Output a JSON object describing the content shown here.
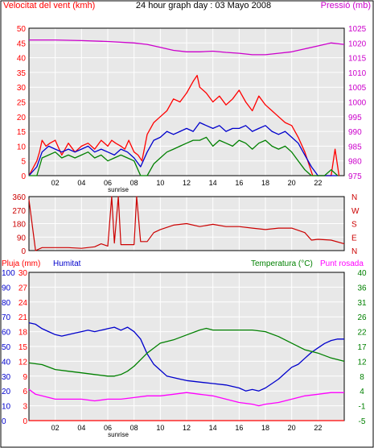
{
  "header": {
    "left": "Velocitat del vent (kmh)",
    "center": "24 hour graph day : 03 Mayo 2008",
    "right": "Pressió (mb)"
  },
  "x_ticks": [
    "02",
    "04",
    "06",
    "08",
    "10",
    "12",
    "14",
    "16",
    "18",
    "20",
    "22"
  ],
  "sunrise_label": "sunrise",
  "colors": {
    "background": "#ffffff",
    "plot_bg": "#e8e8e8",
    "grid": "#ffffff",
    "axis": "#000000",
    "wind": "#ff0000",
    "wind_avg": "#0000cc",
    "wind_min": "#008000",
    "pressure": "#cc00cc",
    "direction": "#cc0000",
    "humidity": "#0000cc",
    "temperature": "#008000",
    "dewpoint": "#ff00ff",
    "rain": "#ff0000"
  },
  "chart_data": [
    {
      "type": "line",
      "title": "24 hour graph day : 03 Mayo 2008",
      "ylabel_left": "Velocitat del vent (kmh)",
      "ylabel_right": "Pressió (mb)",
      "x_ticks": [
        "02",
        "04",
        "06",
        "08",
        "10",
        "12",
        "14",
        "16",
        "18",
        "20",
        "22"
      ],
      "yticks_left": [
        0,
        5,
        10,
        15,
        20,
        25,
        30,
        35,
        40,
        45,
        50
      ],
      "yticks_right": [
        975,
        980,
        985,
        990,
        995,
        1000,
        1005,
        1010,
        1015,
        1020,
        1025
      ],
      "ylim_left": [
        0,
        50
      ],
      "ylim_right": [
        975,
        1025
      ],
      "xlim": [
        0,
        24
      ],
      "grid": true,
      "series": [
        {
          "name": "Velocitat del vent (kmh)",
          "axis": "left",
          "color": "#ff0000",
          "x": [
            0,
            0.6,
            0.8,
            1,
            1.3,
            1.6,
            2,
            2.5,
            3,
            3.5,
            4,
            4.5,
            5,
            5.5,
            6,
            6.3,
            6.6,
            7,
            7.3,
            7.6,
            8,
            8.3,
            8.6,
            9,
            9.5,
            10,
            10.5,
            11,
            11.5,
            12,
            12.5,
            12.8,
            13,
            13.5,
            14,
            14.5,
            15,
            15.5,
            16,
            16.5,
            17,
            17.5,
            18,
            18.5,
            19,
            19.5,
            20,
            20.5,
            21,
            21.3,
            21.6,
            22,
            22.5,
            23,
            23.3,
            23.6
          ],
          "y": [
            0,
            5,
            8,
            12,
            10,
            11,
            12,
            7,
            11,
            8,
            10,
            11,
            9,
            12,
            10,
            12,
            11,
            10,
            9,
            12,
            8,
            7,
            5,
            14,
            18,
            20,
            22,
            26,
            25,
            28,
            32,
            34,
            30,
            28,
            25,
            27,
            24,
            26,
            29,
            25,
            22,
            27,
            24,
            22,
            20,
            18,
            17,
            13,
            8,
            4,
            0,
            0,
            0,
            0,
            9,
            0
          ]
        },
        {
          "name": "",
          "axis": "left",
          "color": "#0000cc",
          "x": [
            0,
            0.6,
            1,
            1.5,
            2,
            2.5,
            3,
            3.5,
            4,
            4.5,
            5,
            5.5,
            6,
            6.5,
            7,
            7.5,
            8,
            8.5,
            9,
            9.5,
            10,
            10.5,
            11,
            11.5,
            12,
            12.5,
            13,
            13.5,
            14,
            14.5,
            15,
            15.5,
            16,
            16.5,
            17,
            17.5,
            18,
            18.5,
            19,
            19.5,
            20,
            20.5,
            21,
            21.5,
            22,
            22.5,
            23,
            23.5
          ],
          "y": [
            0,
            3,
            8,
            10,
            9,
            8,
            9,
            8,
            9,
            10,
            8,
            9,
            8,
            7,
            9,
            8,
            6,
            3,
            8,
            12,
            13,
            15,
            14,
            15,
            16,
            15,
            18,
            17,
            16,
            17,
            15,
            16,
            16,
            17,
            15,
            16,
            17,
            15,
            14,
            15,
            13,
            11,
            7,
            3,
            0,
            0,
            0,
            0
          ]
        },
        {
          "name": "",
          "axis": "left",
          "color": "#008000",
          "x": [
            0,
            0.6,
            1,
            1.5,
            2,
            2.5,
            3,
            3.5,
            4,
            4.5,
            5,
            5.5,
            6,
            6.5,
            7,
            7.5,
            8,
            8.5,
            9,
            9.5,
            10,
            10.5,
            11,
            11.5,
            12,
            12.5,
            13,
            13.5,
            14,
            14.5,
            15,
            15.5,
            16,
            16.5,
            17,
            17.5,
            18,
            18.5,
            19,
            19.5,
            20,
            20.5,
            21,
            21.5,
            22,
            22.5,
            23,
            23.5
          ],
          "y": [
            0,
            0,
            6,
            7,
            8,
            6,
            7,
            6,
            7,
            8,
            6,
            7,
            5,
            6,
            7,
            6,
            5,
            0,
            0,
            4,
            6,
            8,
            9,
            10,
            11,
            12,
            12,
            13,
            10,
            12,
            11,
            10,
            12,
            11,
            9,
            11,
            12,
            10,
            9,
            10,
            8,
            5,
            2,
            0,
            0,
            0,
            2,
            0
          ]
        },
        {
          "name": "Pressió (mb)",
          "axis": "right",
          "color": "#cc00cc",
          "x": [
            0,
            2,
            4,
            6,
            8,
            9,
            10,
            11,
            12,
            13,
            14,
            15,
            16,
            17,
            18,
            19,
            20,
            21,
            22,
            23,
            24
          ],
          "y": [
            1021,
            1021,
            1020.8,
            1020.5,
            1020,
            1019.5,
            1018.5,
            1017.5,
            1017,
            1017,
            1017.2,
            1016.8,
            1016.5,
            1016,
            1016,
            1016.5,
            1017,
            1018,
            1019,
            1020,
            1019.5
          ]
        }
      ]
    },
    {
      "type": "line",
      "ylabel_right": "N W S E N",
      "right_ticks": [
        "N",
        "W",
        "S",
        "E",
        "N"
      ],
      "yticks": [
        0,
        90,
        180,
        270,
        360
      ],
      "ylim": [
        0,
        360
      ],
      "xlim": [
        0,
        24
      ],
      "grid": true,
      "series": [
        {
          "name": "",
          "color": "#cc0000",
          "x": [
            0,
            0.5,
            1,
            2,
            3,
            4,
            5,
            5.5,
            6,
            6.3,
            6.5,
            6.8,
            7,
            7.3,
            7.5,
            8,
            8.2,
            8.5,
            9,
            9.5,
            10,
            11,
            12,
            13,
            14,
            15,
            16,
            17,
            18,
            19,
            20,
            21,
            21.5,
            22,
            23,
            24
          ],
          "y": [
            340,
            0,
            20,
            20,
            20,
            15,
            25,
            45,
            30,
            360,
            50,
            360,
            40,
            40,
            40,
            40,
            360,
            60,
            60,
            120,
            140,
            170,
            180,
            160,
            175,
            160,
            160,
            150,
            140,
            150,
            150,
            120,
            70,
            75,
            70,
            45
          ]
        }
      ]
    },
    {
      "type": "line",
      "yaxis_titles": {
        "pluja": "Pluja (mm)",
        "humitat": "Humitat",
        "temperatura": "Temperatura (°C)",
        "punt_rosada": "Punt rosada"
      },
      "yticks_pluja": [
        0,
        3,
        6,
        9,
        12,
        15,
        18,
        21,
        24,
        27,
        30
      ],
      "yticks_humitat": [
        0,
        10,
        20,
        30,
        40,
        50,
        60,
        70,
        80,
        90,
        100
      ],
      "yticks_temperatura": [
        -5,
        -1,
        4,
        8,
        12,
        17,
        22,
        26,
        31,
        36,
        40
      ],
      "ylim_pluja": [
        0,
        30
      ],
      "ylim_humitat": [
        0,
        100
      ],
      "ylim_temperatura": [
        -5,
        40
      ],
      "xlim": [
        0,
        24
      ],
      "grid": true,
      "series": [
        {
          "name": "Humitat",
          "axis": "humitat",
          "color": "#0000cc",
          "x": [
            0,
            0.5,
            1,
            1.5,
            2,
            2.5,
            3,
            3.5,
            4,
            4.5,
            5,
            5.5,
            6,
            6.5,
            7,
            7.5,
            8,
            8.5,
            9,
            9.5,
            10,
            10.5,
            11,
            11.5,
            12,
            13,
            14,
            15,
            16,
            16.5,
            17,
            17.5,
            18,
            18.5,
            19,
            19.5,
            20,
            20.5,
            21,
            21.5,
            22,
            22.5,
            23,
            23.5,
            24
          ],
          "y": [
            66,
            65,
            62,
            60,
            58,
            57,
            58,
            59,
            60,
            61,
            60,
            61,
            62,
            63,
            61,
            63,
            60,
            55,
            45,
            38,
            34,
            30,
            29,
            28,
            27,
            26,
            25,
            24,
            22,
            20,
            21,
            20,
            22,
            25,
            28,
            32,
            36,
            38,
            42,
            46,
            49,
            52,
            54,
            55,
            55
          ]
        },
        {
          "name": "Temperatura (°C)",
          "axis": "temperatura",
          "color": "#008000",
          "x": [
            0,
            1,
            2,
            3,
            4,
            5,
            6,
            6.5,
            7,
            7.5,
            8,
            8.5,
            9,
            9.5,
            10,
            11,
            12,
            13,
            13.5,
            14,
            15,
            16,
            17,
            18,
            19,
            20,
            21,
            22,
            23,
            24
          ],
          "y": [
            12.5,
            12,
            10.5,
            10,
            9.5,
            9,
            8.5,
            8.5,
            9,
            10,
            11.5,
            13.5,
            15.5,
            17,
            18.5,
            19.5,
            21,
            22.5,
            23,
            22.5,
            22.5,
            22.5,
            22.5,
            22,
            20.5,
            18.5,
            16.5,
            15.5,
            14,
            13
          ]
        },
        {
          "name": "Punt rosada",
          "axis": "temperatura",
          "color": "#ff00ff",
          "x": [
            0,
            0.5,
            1,
            2,
            3,
            4,
            5,
            6,
            7,
            8,
            9,
            10,
            11,
            12,
            13,
            14,
            15,
            16,
            17,
            17.5,
            18,
            19,
            20,
            21,
            22,
            23,
            24
          ],
          "y": [
            4.5,
            3,
            2.5,
            1.5,
            1.5,
            1.5,
            1,
            1.5,
            1.5,
            2,
            2.5,
            2.5,
            3,
            3.5,
            3,
            2.5,
            1.5,
            0.5,
            0,
            -0.5,
            0,
            0.5,
            1.5,
            2.5,
            3,
            3.5,
            3.5
          ]
        },
        {
          "name": "Pluja (mm)",
          "axis": "pluja",
          "color": "#ff0000",
          "x": [
            0,
            24
          ],
          "y": [
            0,
            0
          ]
        }
      ]
    }
  ]
}
